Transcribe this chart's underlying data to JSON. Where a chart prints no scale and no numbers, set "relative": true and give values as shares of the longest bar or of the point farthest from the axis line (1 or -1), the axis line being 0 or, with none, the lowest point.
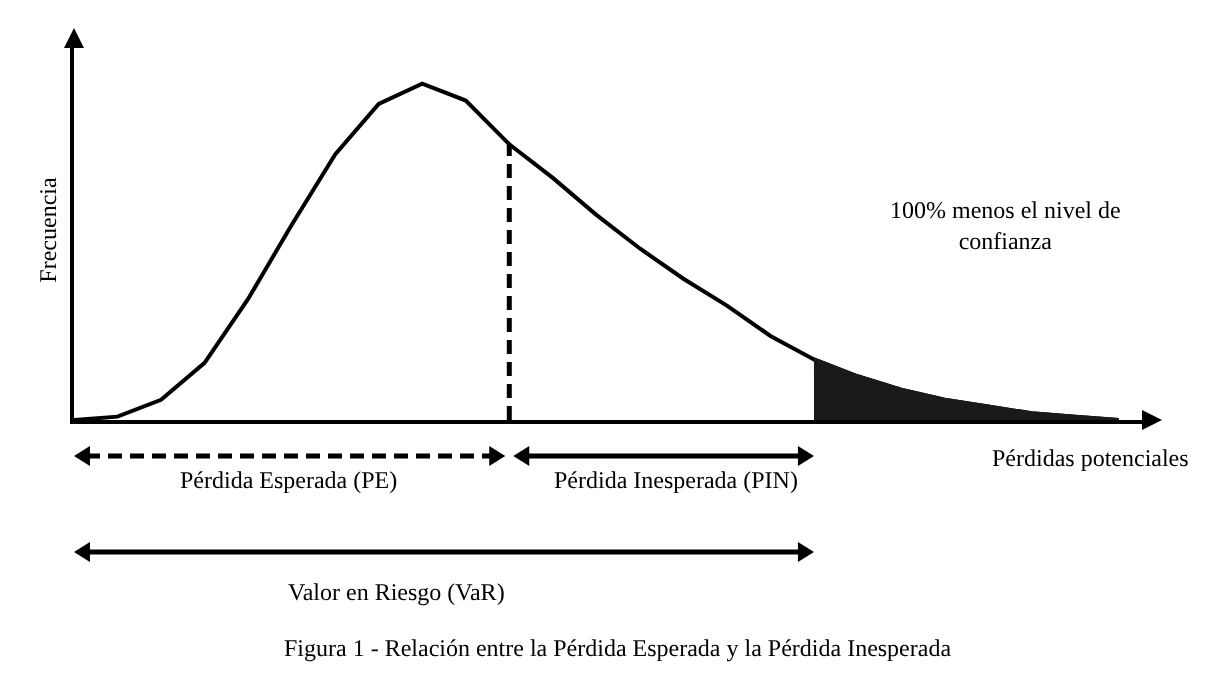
{
  "chart_data": {
    "type": "line",
    "relative": true,
    "xlabel": "Pérdidas potenciales",
    "ylabel": "Frecuencia",
    "categories": [
      null,
      null,
      null,
      null,
      null,
      null,
      null,
      null,
      null,
      null,
      null,
      null,
      null,
      null,
      null,
      null,
      null,
      null,
      null,
      null,
      null,
      null,
      null,
      null,
      null
    ],
    "series": [
      {
        "color": "#000000",
        "values": [
          0,
          0.01,
          0.06,
          0.17,
          0.36,
          0.58,
          0.79,
          0.94,
          1.0,
          0.95,
          0.82,
          0.72,
          0.61,
          0.51,
          0.42,
          0.34,
          0.25,
          0.18,
          0.13,
          0.09,
          0.06,
          0.04,
          0.02,
          0.01,
          0
        ]
      },
      {
        "type": "area",
        "color": "#1a1a1a",
        "values": [
          null,
          null,
          null,
          null,
          null,
          null,
          null,
          null,
          null,
          null,
          null,
          null,
          null,
          null,
          null,
          null,
          null,
          0.18,
          0.13,
          0.09,
          0.06,
          0.04,
          0.02,
          0.01,
          0
        ]
      }
    ],
    "annotations": [
      "100% menos el nivel de\nconfianza",
      "Pérdida Esperada (PE)",
      "Pérdida Inesperada (PIN)",
      "Valor en Riesgo (VaR)",
      "Figura 1 - Relación entre la Pérdida Esperada y la Pérdida Inesperada"
    ],
    "marker": "none",
    "line_style": "solid"
  }
}
